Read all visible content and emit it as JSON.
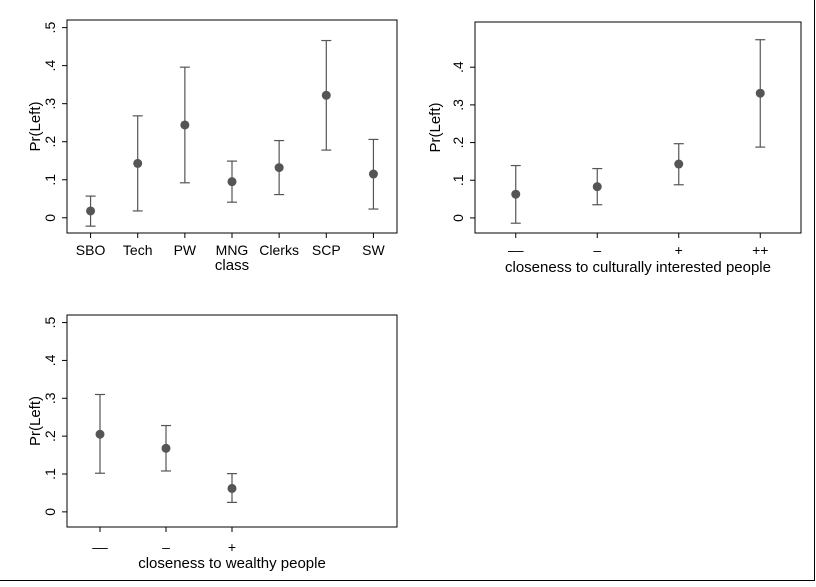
{
  "colors": {
    "marker": "#555555",
    "axis": "#000000",
    "background": "#ffffff"
  },
  "chart_data": [
    {
      "type": "scatter",
      "subtype": "point-estimate-with-error-bars",
      "title": "",
      "ylabel": "Pr(Left)",
      "xlabel": "class",
      "ylim": [
        -0.04,
        0.52
      ],
      "yticks": [
        0,
        0.1,
        0.2,
        0.3,
        0.4,
        0.5
      ],
      "ytick_labels": [
        "0",
        ".1",
        ".2",
        ".3",
        ".4",
        ".5"
      ],
      "categories": [
        "SBO",
        "Tech",
        "PW",
        "MNG",
        "Clerks",
        "SCP",
        "SW"
      ],
      "values": [
        0.018,
        0.143,
        0.244,
        0.095,
        0.132,
        0.322,
        0.115
      ],
      "lower": [
        -0.022,
        0.018,
        0.092,
        0.041,
        0.061,
        0.178,
        0.023
      ],
      "upper": [
        0.057,
        0.268,
        0.396,
        0.149,
        0.203,
        0.466,
        0.206
      ],
      "grid": false
    },
    {
      "type": "scatter",
      "subtype": "point-estimate-with-error-bars",
      "title": "",
      "ylabel": "Pr(Left)",
      "xlabel": "closeness to culturally interested people",
      "ylim": [
        -0.04,
        0.52
      ],
      "yticks": [
        0,
        0.1,
        0.2,
        0.3,
        0.4
      ],
      "ytick_labels": [
        "0",
        ".1",
        ".2",
        ".3",
        ".4"
      ],
      "categories": [
        "––",
        "–",
        "+",
        "++"
      ],
      "values": [
        0.063,
        0.083,
        0.143,
        0.331
      ],
      "lower": [
        -0.014,
        0.035,
        0.088,
        0.188
      ],
      "upper": [
        0.139,
        0.131,
        0.197,
        0.473
      ],
      "grid": false
    },
    {
      "type": "scatter",
      "subtype": "point-estimate-with-error-bars",
      "title": "",
      "ylabel": "Pr(Left)",
      "xlabel": "closeness to wealthy people",
      "ylim": [
        -0.04,
        0.52
      ],
      "yticks": [
        0,
        0.1,
        0.2,
        0.3,
        0.4,
        0.5
      ],
      "ytick_labels": [
        "0",
        ".1",
        ".2",
        ".3",
        ".4",
        ".5"
      ],
      "categories": [
        "––",
        "–",
        "+"
      ],
      "category_slots": 5,
      "values": [
        0.205,
        0.168,
        0.062
      ],
      "lower": [
        0.102,
        0.108,
        0.025
      ],
      "upper": [
        0.31,
        0.228,
        0.101
      ],
      "grid": false
    }
  ]
}
